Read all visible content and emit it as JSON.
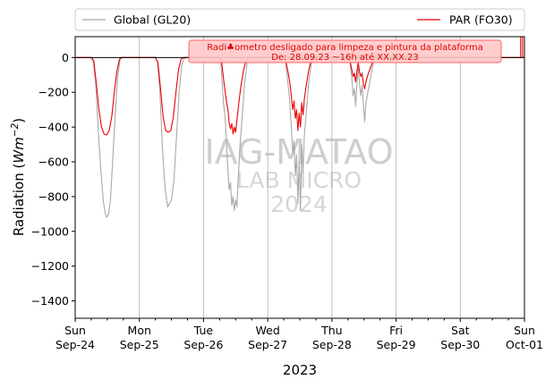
{
  "chart_data": {
    "type": "line",
    "xlabel": "2023",
    "ylabel": "Radiation ($Wm{-2}$)",
    "ylabel_main": "Radiation (",
    "ylabel_unit": "Wm",
    "ylabel_exp": "−2",
    "ylabel_close": ")",
    "ylim": [
      -1500,
      120
    ],
    "yticks": [
      0,
      -200,
      -400,
      -600,
      -800,
      -1000,
      -1200,
      -1400
    ],
    "ytick_labels": [
      "0",
      "−200",
      "−400",
      "−600",
      "−800",
      "−1000",
      "−1200",
      "−1400"
    ],
    "xlim": [
      0,
      7
    ],
    "xticks": [
      {
        "day": 0,
        "l1": "Sun",
        "l2": "Sep-24"
      },
      {
        "day": 1,
        "l1": "Mon",
        "l2": "Sep-25"
      },
      {
        "day": 2,
        "l1": "Tue",
        "l2": "Sep-26"
      },
      {
        "day": 3,
        "l1": "Wed",
        "l2": "Sep-27"
      },
      {
        "day": 4,
        "l1": "Thu",
        "l2": "Sep-28"
      },
      {
        "day": 5,
        "l1": "Fri",
        "l2": "Sep-29"
      },
      {
        "day": 6,
        "l1": "Sat",
        "l2": "Sep-30"
      },
      {
        "day": 7,
        "l1": "Sun",
        "l2": "Oct-01"
      }
    ],
    "grid": "vertical",
    "legend_position": "top",
    "series": [
      {
        "name": "Global (GL20)",
        "color": "#a9a9a9",
        "points": [
          [
            0,
            0
          ],
          [
            0.24,
            0
          ],
          [
            0.28,
            -20
          ],
          [
            0.32,
            -150
          ],
          [
            0.36,
            -420
          ],
          [
            0.4,
            -650
          ],
          [
            0.44,
            -830
          ],
          [
            0.47,
            -900
          ],
          [
            0.49,
            -920
          ],
          [
            0.52,
            -900
          ],
          [
            0.55,
            -820
          ],
          [
            0.58,
            -620
          ],
          [
            0.62,
            -350
          ],
          [
            0.66,
            -120
          ],
          [
            0.7,
            -10
          ],
          [
            0.74,
            0
          ],
          [
            1.24,
            0
          ],
          [
            1.28,
            -20
          ],
          [
            1.32,
            -200
          ],
          [
            1.36,
            -520
          ],
          [
            1.4,
            -750
          ],
          [
            1.44,
            -860
          ],
          [
            1.47,
            -840
          ],
          [
            1.5,
            -820
          ],
          [
            1.54,
            -700
          ],
          [
            1.58,
            -450
          ],
          [
            1.62,
            -200
          ],
          [
            1.66,
            -40
          ],
          [
            1.7,
            -5
          ],
          [
            1.74,
            0
          ],
          [
            2.24,
            0
          ],
          [
            2.27,
            -30
          ],
          [
            2.31,
            -260
          ],
          [
            2.34,
            -360
          ],
          [
            2.36,
            -520
          ],
          [
            2.38,
            -650
          ],
          [
            2.4,
            -760
          ],
          [
            2.42,
            -720
          ],
          [
            2.44,
            -850
          ],
          [
            2.46,
            -800
          ],
          [
            2.48,
            -880
          ],
          [
            2.5,
            -820
          ],
          [
            2.52,
            -860
          ],
          [
            2.54,
            -700
          ],
          [
            2.57,
            -500
          ],
          [
            2.6,
            -350
          ],
          [
            2.64,
            -150
          ],
          [
            2.68,
            -30
          ],
          [
            2.72,
            0
          ],
          [
            3.24,
            0
          ],
          [
            3.28,
            -30
          ],
          [
            3.31,
            -130
          ],
          [
            3.34,
            -240
          ],
          [
            3.37,
            -420
          ],
          [
            3.39,
            -550
          ],
          [
            3.41,
            -480
          ],
          [
            3.43,
            -680
          ],
          [
            3.45,
            -560
          ],
          [
            3.47,
            -840
          ],
          [
            3.49,
            -600
          ],
          [
            3.51,
            -880
          ],
          [
            3.53,
            -500
          ],
          [
            3.55,
            -660
          ],
          [
            3.57,
            -450
          ],
          [
            3.6,
            -320
          ],
          [
            3.64,
            -140
          ],
          [
            3.68,
            -30
          ],
          [
            3.72,
            0
          ],
          [
            4.24,
            0
          ],
          [
            4.28,
            -20
          ],
          [
            4.31,
            -120
          ],
          [
            4.33,
            -220
          ],
          [
            4.35,
            -180
          ],
          [
            4.37,
            -280
          ],
          [
            4.39,
            -150
          ],
          [
            4.41,
            -60
          ],
          [
            4.43,
            -150
          ],
          [
            4.45,
            -220
          ],
          [
            4.47,
            -160
          ],
          [
            4.49,
            -260
          ],
          [
            4.51,
            -370
          ],
          [
            4.53,
            -260
          ],
          [
            4.56,
            -200
          ],
          [
            4.6,
            -120
          ],
          [
            4.64,
            -40
          ],
          [
            4.68,
            -5
          ],
          [
            4.72,
            0
          ],
          [
            7,
            0
          ]
        ]
      },
      {
        "name": "PAR (FO30)",
        "color": "#ee0000",
        "points": [
          [
            0,
            0
          ],
          [
            0.26,
            0
          ],
          [
            0.29,
            -20
          ],
          [
            0.33,
            -150
          ],
          [
            0.37,
            -300
          ],
          [
            0.41,
            -400
          ],
          [
            0.45,
            -440
          ],
          [
            0.49,
            -445
          ],
          [
            0.53,
            -420
          ],
          [
            0.57,
            -340
          ],
          [
            0.61,
            -200
          ],
          [
            0.65,
            -80
          ],
          [
            0.69,
            -10
          ],
          [
            0.72,
            0
          ],
          [
            1.25,
            0
          ],
          [
            1.29,
            -30
          ],
          [
            1.33,
            -180
          ],
          [
            1.37,
            -340
          ],
          [
            1.41,
            -420
          ],
          [
            1.45,
            -430
          ],
          [
            1.49,
            -420
          ],
          [
            1.53,
            -340
          ],
          [
            1.57,
            -200
          ],
          [
            1.61,
            -70
          ],
          [
            1.65,
            -10
          ],
          [
            1.69,
            0
          ],
          [
            2.25,
            0
          ],
          [
            2.28,
            -20
          ],
          [
            2.32,
            -150
          ],
          [
            2.36,
            -260
          ],
          [
            2.38,
            -300
          ],
          [
            2.4,
            -380
          ],
          [
            2.42,
            -410
          ],
          [
            2.44,
            -380
          ],
          [
            2.46,
            -440
          ],
          [
            2.48,
            -400
          ],
          [
            2.5,
            -430
          ],
          [
            2.52,
            -360
          ],
          [
            2.55,
            -260
          ],
          [
            2.58,
            -170
          ],
          [
            2.62,
            -80
          ],
          [
            2.66,
            -20
          ],
          [
            2.7,
            0
          ],
          [
            3.25,
            0
          ],
          [
            3.28,
            -20
          ],
          [
            3.32,
            -90
          ],
          [
            3.35,
            -160
          ],
          [
            3.37,
            -230
          ],
          [
            3.39,
            -300
          ],
          [
            3.41,
            -250
          ],
          [
            3.43,
            -350
          ],
          [
            3.45,
            -300
          ],
          [
            3.47,
            -420
          ],
          [
            3.49,
            -320
          ],
          [
            3.51,
            -400
          ],
          [
            3.53,
            -260
          ],
          [
            3.55,
            -330
          ],
          [
            3.57,
            -240
          ],
          [
            3.6,
            -160
          ],
          [
            3.64,
            -70
          ],
          [
            3.68,
            -15
          ],
          [
            3.72,
            0
          ],
          [
            4.24,
            0
          ],
          [
            4.28,
            -15
          ],
          [
            4.31,
            -70
          ],
          [
            4.33,
            -110
          ],
          [
            4.35,
            -90
          ],
          [
            4.37,
            -140
          ],
          [
            4.39,
            -80
          ],
          [
            4.41,
            -30
          ],
          [
            4.43,
            -80
          ],
          [
            4.45,
            -110
          ],
          [
            4.47,
            -90
          ],
          [
            4.49,
            -150
          ],
          [
            4.51,
            -180
          ],
          [
            4.53,
            -140
          ],
          [
            4.56,
            -100
          ],
          [
            4.6,
            -60
          ],
          [
            4.64,
            -20
          ],
          [
            4.68,
            0
          ],
          [
            6.94,
            0
          ],
          [
            6.94,
            120
          ],
          [
            6.97,
            120
          ],
          [
            6.97,
            0
          ],
          [
            7,
            0
          ]
        ]
      }
    ],
    "watermark": [
      "IAG-MATAO",
      "LAB MICRO",
      "2024"
    ],
    "annotations": [
      "Radi♣ometro desligado para limpeza e pintura da plataforma",
      "De: 28.09.23 ~16h até XX.XX.23"
    ],
    "colors": {
      "axis": "#000000",
      "grid": "#b0b0b0",
      "zero_line": "#000000",
      "annotation_box": "#ffc8c8",
      "annotation_edge": "#ff6060"
    }
  }
}
